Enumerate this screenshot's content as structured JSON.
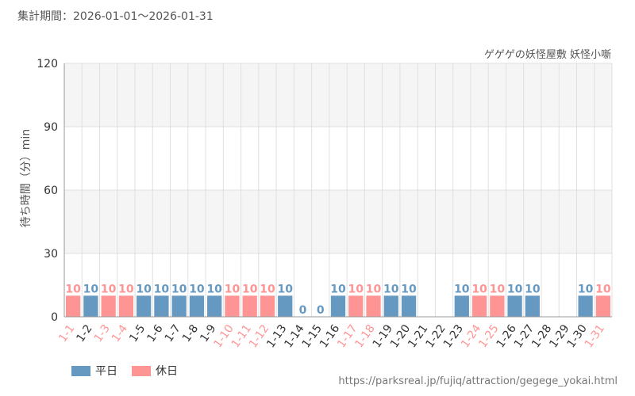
{
  "header": {
    "period_text": "集計期間：2026-01-01～2026-01-31"
  },
  "colors": {
    "weekday": "#6699c2",
    "holiday": "#ff9494",
    "plot_bg": "#f5f5f5",
    "grid": "#e0e0e0",
    "text": "#555555"
  },
  "legend": {
    "weekday_label": "平日",
    "holiday_label": "休日"
  },
  "footer": {
    "url": "https://parksreal.jp/fujiq/attraction/gegege_yokai.html"
  },
  "chart_data": {
    "type": "bar",
    "title": "ゲゲゲの妖怪屋敷 妖怪小噺",
    "ylabel": "待ち時間（分）min",
    "xlabel": "",
    "ylim": [
      0,
      120
    ],
    "yticks": [
      0,
      30,
      60,
      90,
      120
    ],
    "grid": true,
    "legend_position": "bottom-left",
    "categories": [
      "1-1",
      "1-2",
      "1-3",
      "1-4",
      "1-5",
      "1-6",
      "1-7",
      "1-8",
      "1-9",
      "1-10",
      "1-11",
      "1-12",
      "1-13",
      "1-14",
      "1-15",
      "1-16",
      "1-17",
      "1-18",
      "1-19",
      "1-20",
      "1-21",
      "1-22",
      "1-23",
      "1-24",
      "1-25",
      "1-26",
      "1-27",
      "1-28",
      "1-29",
      "1-30",
      "1-31"
    ],
    "day_type": [
      "holiday",
      "weekday",
      "holiday",
      "holiday",
      "weekday",
      "weekday",
      "weekday",
      "weekday",
      "weekday",
      "holiday",
      "holiday",
      "holiday",
      "weekday",
      "weekday",
      "weekday",
      "weekday",
      "holiday",
      "holiday",
      "weekday",
      "weekday",
      "weekday",
      "weekday",
      "weekday",
      "holiday",
      "holiday",
      "weekday",
      "weekday",
      "weekday",
      "weekday",
      "weekday",
      "holiday"
    ],
    "series": [
      {
        "name": "平日",
        "type": "weekday"
      },
      {
        "name": "休日",
        "type": "holiday"
      }
    ],
    "values": [
      10,
      10,
      10,
      10,
      10,
      10,
      10,
      10,
      10,
      10,
      10,
      10,
      10,
      0,
      0,
      10,
      10,
      10,
      10,
      10,
      null,
      null,
      10,
      10,
      10,
      10,
      10,
      null,
      null,
      10,
      10
    ]
  }
}
